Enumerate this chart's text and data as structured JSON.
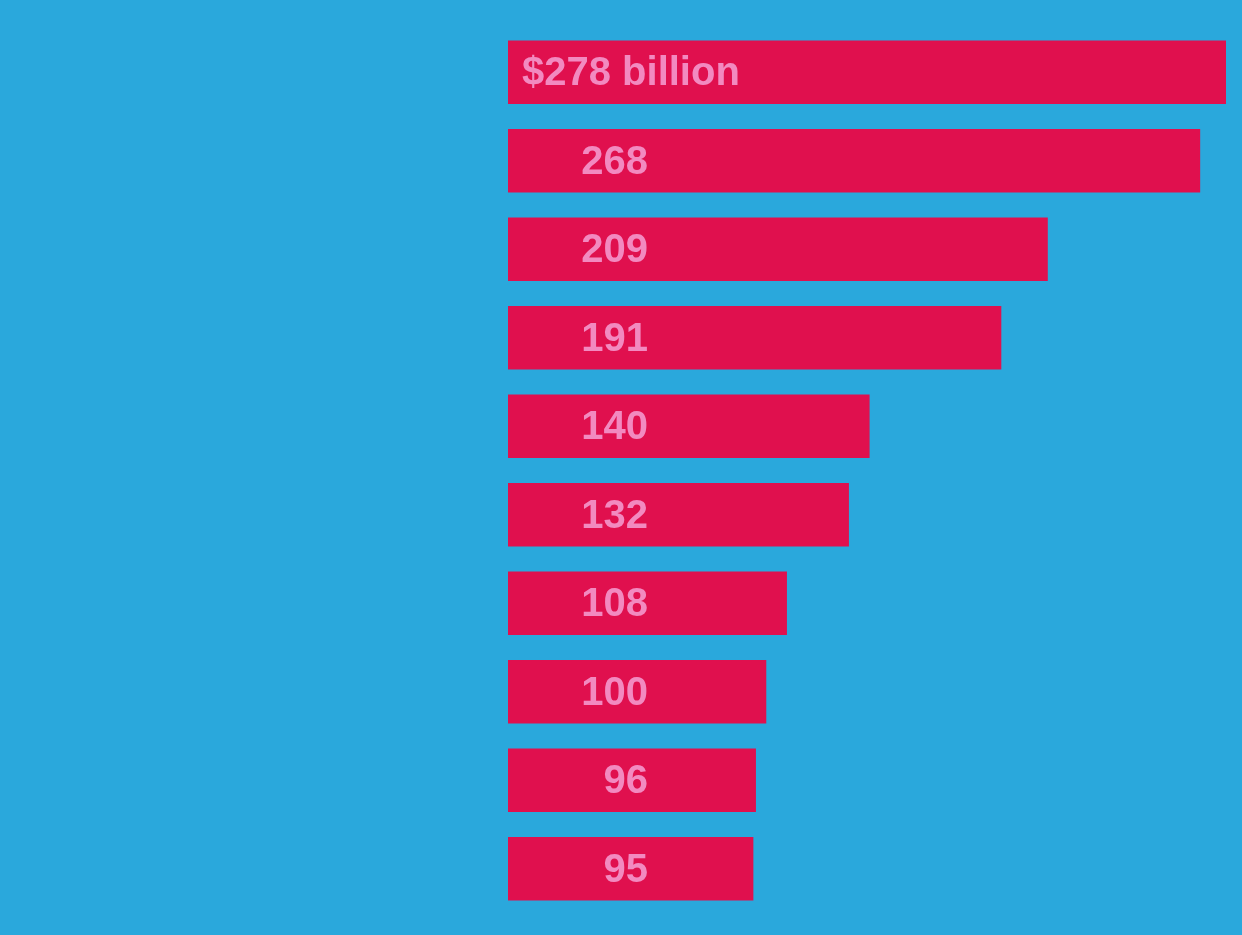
{
  "chart_data": {
    "type": "bar",
    "orientation": "horizontal",
    "categories": [
      null,
      null,
      null,
      null,
      null,
      null,
      null,
      null,
      null,
      null
    ],
    "values": [
      278,
      268,
      209,
      191,
      140,
      132,
      108,
      100,
      96,
      95
    ],
    "value_labels": [
      "$278 billion",
      "268",
      "209",
      "191",
      "140",
      "132",
      "108",
      "100",
      "96",
      "95"
    ],
    "color": "#e0104e",
    "grid": false,
    "legend": false
  }
}
